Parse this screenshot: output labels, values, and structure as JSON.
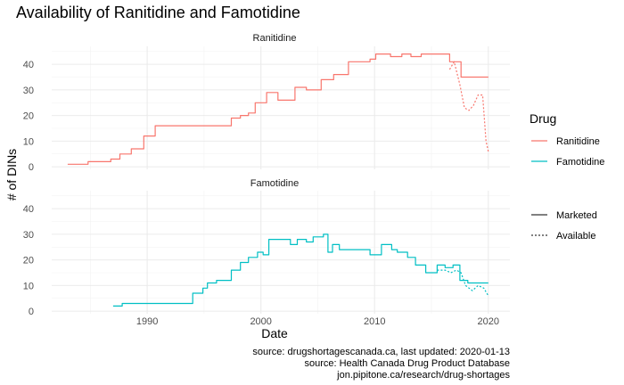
{
  "chart_data": {
    "type": "line",
    "title": "Availability of Ranitidine and Famotidine",
    "xlabel": "Date",
    "ylabel": "# of DINs",
    "xlim": [
      1981.6,
      2021.9
    ],
    "ylim": [
      -1,
      47
    ],
    "x_ticks": [
      "1990",
      "2000",
      "2010",
      "2020"
    ],
    "x_tick_values": [
      1990,
      2000,
      2010,
      2020
    ],
    "y_ticks": [
      "0",
      "10",
      "20",
      "30",
      "40"
    ],
    "y_tick_values": [
      0,
      10,
      20,
      30,
      40
    ],
    "grid": true,
    "legend_position": "right",
    "panels": [
      {
        "name": "Ranitidine",
        "color": "#F8766D",
        "series": [
          {
            "status": "Marketed",
            "x": [
              1983.0,
              1984.8,
              1984.8,
              1986.8,
              1986.8,
              1987.6,
              1987.6,
              1988.6,
              1988.6,
              1989.7,
              1989.7,
              1990.7,
              1990.7,
              1991.1,
              1991.1,
              1997.4,
              1997.4,
              1998.2,
              1998.2,
              1998.9,
              1998.9,
              1999.5,
              1999.5,
              2000.5,
              2000.5,
              2001.5,
              2001.5,
              2003.0,
              2003.0,
              2004.0,
              2004.0,
              2005.3,
              2005.3,
              2006.4,
              2006.4,
              2007.7,
              2007.7,
              2009.6,
              2009.6,
              2010.1,
              2010.1,
              2011.4,
              2011.4,
              2012.4,
              2012.4,
              2013.2,
              2013.2,
              2014.1,
              2014.1,
              2016.6,
              2016.6,
              2017.6,
              2017.6,
              2020.0
            ],
            "y": [
              1,
              1,
              2,
              2,
              3,
              3,
              5,
              5,
              7,
              7,
              12,
              12,
              16,
              16,
              16,
              16,
              19,
              19,
              20,
              20,
              21,
              21,
              25,
              25,
              29,
              29,
              26,
              26,
              31,
              31,
              30,
              30,
              34,
              34,
              36,
              36,
              41,
              41,
              42,
              42,
              44,
              44,
              43,
              43,
              44,
              44,
              43,
              43,
              44,
              44,
              41,
              41,
              35,
              35
            ]
          },
          {
            "status": "Available",
            "x": [
              2016.6,
              2017.0,
              2017.5,
              2017.9,
              2018.3,
              2018.7,
              2019.1,
              2019.5,
              2019.8,
              2020.0
            ],
            "y": [
              38,
              41,
              32,
              23,
              22,
              24,
              28,
              28,
              10,
              6
            ]
          }
        ]
      },
      {
        "name": "Famotidine",
        "color": "#00BFC4",
        "series": [
          {
            "status": "Marketed",
            "x": [
              1987.0,
              1987.8,
              1987.8,
              1988.2,
              1988.2,
              1994.0,
              1994.0,
              1994.9,
              1994.9,
              1995.3,
              1995.3,
              1996.1,
              1996.1,
              1997.4,
              1997.4,
              1998.2,
              1998.2,
              1998.9,
              1998.9,
              1999.7,
              1999.7,
              2000.2,
              2000.2,
              2000.7,
              2000.7,
              2002.6,
              2002.6,
              2003.2,
              2003.2,
              2004.0,
              2004.0,
              2004.6,
              2004.6,
              2005.5,
              2005.5,
              2005.9,
              2005.9,
              2006.3,
              2006.3,
              2006.9,
              2006.9,
              2009.6,
              2009.6,
              2010.6,
              2010.6,
              2011.5,
              2011.5,
              2012.0,
              2012.0,
              2012.9,
              2012.9,
              2013.6,
              2013.6,
              2014.5,
              2014.5,
              2015.5,
              2015.5,
              2016.2,
              2016.2,
              2016.9,
              2016.9,
              2017.5,
              2017.5,
              2018.2,
              2018.2,
              2020.0
            ],
            "y": [
              2,
              2,
              3,
              3,
              3,
              3,
              7,
              7,
              9,
              9,
              11,
              11,
              12,
              12,
              16,
              16,
              19,
              19,
              21,
              21,
              23,
              23,
              22,
              22,
              28,
              28,
              26,
              26,
              28,
              28,
              27,
              27,
              29,
              29,
              30,
              30,
              23,
              23,
              26,
              26,
              24,
              24,
              22,
              22,
              26,
              26,
              24,
              24,
              23,
              23,
              21,
              21,
              18,
              18,
              15,
              15,
              18,
              18,
              17,
              17,
              18,
              18,
              12,
              12,
              11,
              11
            ]
          },
          {
            "status": "Available",
            "x": [
              2015.5,
              2016.2,
              2016.7,
              2017.2,
              2017.6,
              2018.0,
              2018.6,
              2019.1,
              2019.6,
              2020.0
            ],
            "y": [
              16,
              16,
              15,
              16,
              15,
              10,
              8,
              10,
              9,
              6
            ]
          }
        ]
      }
    ],
    "legend": {
      "title": "Drug",
      "drug_items": [
        {
          "label": "Ranitidine",
          "color": "#F8766D"
        },
        {
          "label": "Famotidine",
          "color": "#00BFC4"
        }
      ],
      "status_items": [
        {
          "label": "Marketed",
          "dash": "solid"
        },
        {
          "label": "Available",
          "dash": "dotted"
        }
      ]
    },
    "caption": [
      "source: drugshortagescanada.ca, last updated: 2020-01-13",
      "source: Health Canada Drug Product Database",
      "jon.pipitone.ca/research/drug-shortages"
    ]
  }
}
